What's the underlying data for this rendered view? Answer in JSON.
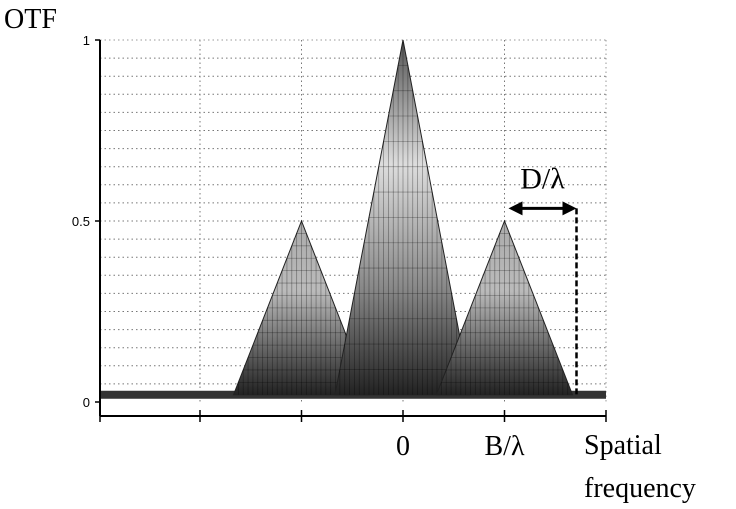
{
  "chart_data": {
    "type": "area",
    "ylabel": "OTF",
    "xlabel_line1": "Spatial",
    "xlabel_line2": "frequency",
    "x_tick_labels": [
      {
        "x": 0,
        "label": "0"
      },
      {
        "x": 1,
        "label": "B/λ"
      }
    ],
    "y_ticks": [
      {
        "y": 0,
        "label": "0"
      },
      {
        "y": 0.5,
        "label": "0.5"
      },
      {
        "y": 1,
        "label": "1"
      }
    ],
    "ylim": [
      0,
      1
    ],
    "xlim": [
      -3,
      2
    ],
    "grid": true,
    "annotation": {
      "label": "D/λ",
      "from_x": 1,
      "to_x": 1.67
    },
    "series": [
      {
        "peak_x": -1,
        "peak_y": 0.5,
        "half_width": 0.67
      },
      {
        "peak_x": 0,
        "peak_y": 1,
        "half_width": 0.67
      },
      {
        "peak_x": 1,
        "peak_y": 0.5,
        "half_width": 0.67
      }
    ],
    "baseline_y": 0.02
  }
}
